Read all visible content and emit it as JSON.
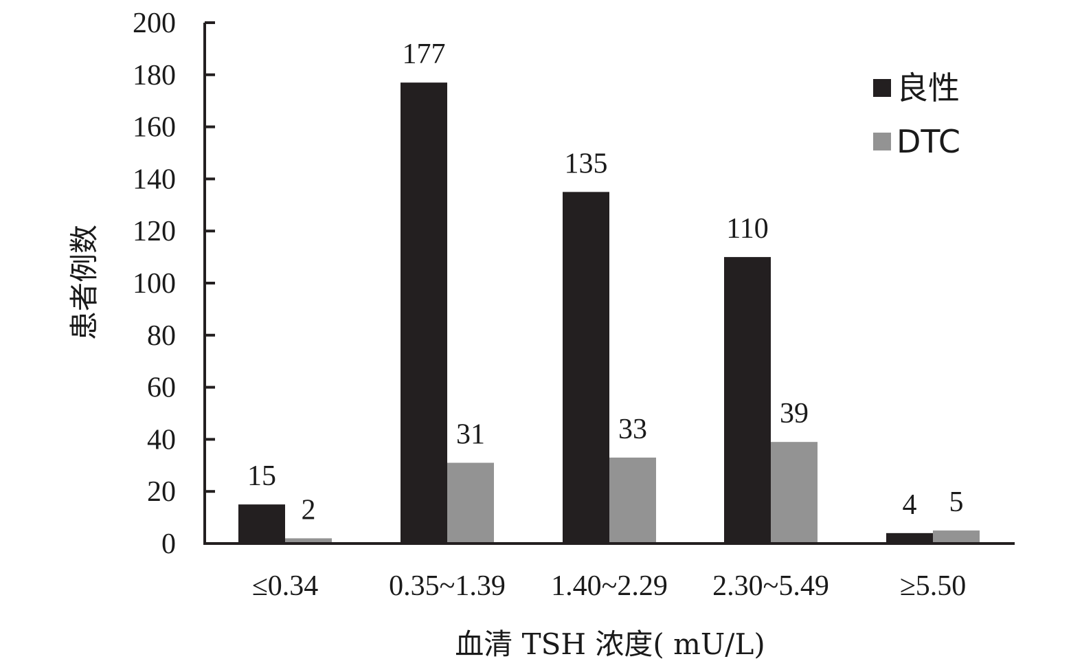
{
  "chart_data": {
    "type": "bar",
    "categories": [
      "≤0.34",
      "0.35~1.39",
      "1.40~2.29",
      "2.30~5.49",
      "≥5.50"
    ],
    "series": [
      {
        "name": "良性",
        "values": [
          15,
          177,
          135,
          110,
          4
        ],
        "color": "#231f20"
      },
      {
        "name": "DTC",
        "values": [
          2,
          31,
          33,
          39,
          5
        ],
        "color": "#939393"
      }
    ],
    "xlabel": "血清 TSH 浓度( mU/L)",
    "ylabel": "患者例数",
    "ylim": [
      0,
      200
    ],
    "yticks": [
      0,
      20,
      40,
      60,
      80,
      100,
      120,
      140,
      160,
      180,
      200
    ],
    "grid": false,
    "legend": "top-right",
    "data_labels": true
  }
}
